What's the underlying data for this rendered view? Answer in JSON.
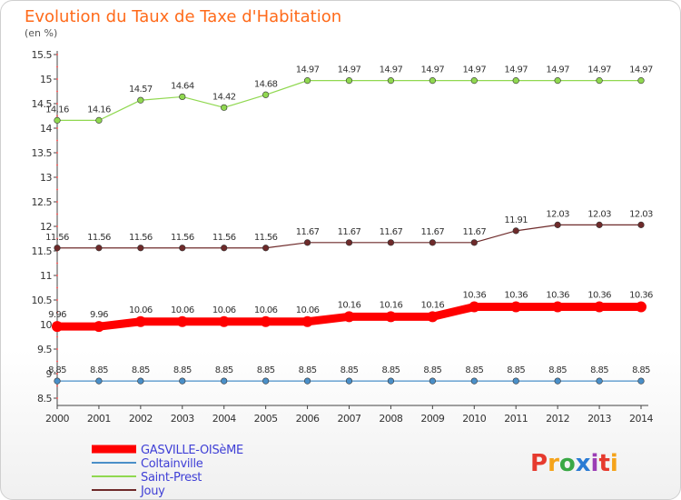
{
  "title": "Evolution du Taux de Taxe d'Habitation",
  "subtitle": "(en %)",
  "logo": {
    "text": "Proxiti",
    "colors": [
      "#e63a2e",
      "#f5a31a",
      "#3aa845",
      "#2a7bd4",
      "#9b3db5"
    ]
  },
  "chart_data": {
    "type": "line",
    "x": [
      2000,
      2001,
      2002,
      2003,
      2004,
      2005,
      2006,
      2007,
      2008,
      2009,
      2010,
      2011,
      2012,
      2013,
      2014
    ],
    "ylim": [
      8.5,
      15.5
    ],
    "yticks": [
      "8.5",
      "9",
      "9.5",
      "10",
      "10.5",
      "11",
      "11.5",
      "12",
      "12.5",
      "13",
      "13.5",
      "14",
      "14.5",
      "15",
      "15.5"
    ],
    "grid": false,
    "legend": "bottom",
    "series": [
      {
        "name": "Saint-Prest",
        "color": "#90d850",
        "width": 1.2,
        "values": [
          14.16,
          14.16,
          14.57,
          14.64,
          14.42,
          14.68,
          14.97,
          14.97,
          14.97,
          14.97,
          14.97,
          14.97,
          14.97,
          14.97,
          14.97
        ],
        "labels": [
          "14.16",
          "14.16",
          "14.57",
          "14.64",
          "14.42",
          "14.68",
          "14.97",
          "14.97",
          "14.97",
          "14.97",
          "14.97",
          "14.97",
          "14.97",
          "14.97",
          "14.97"
        ]
      },
      {
        "name": "Jouy",
        "color": "#6e2a2a",
        "width": 1.2,
        "values": [
          11.56,
          11.56,
          11.56,
          11.56,
          11.56,
          11.56,
          11.67,
          11.67,
          11.67,
          11.67,
          11.67,
          11.91,
          12.03,
          12.03,
          12.03
        ],
        "labels": [
          "11.56",
          "11.56",
          "11.56",
          "11.56",
          "11.56",
          "11.56",
          "11.67",
          "11.67",
          "11.67",
          "11.67",
          "11.67",
          "11.91",
          "12.03",
          "12.03",
          "12.03"
        ]
      },
      {
        "name": "GASVILLE-OISèME",
        "color": "#ff0000",
        "width": 9,
        "values": [
          9.96,
          9.96,
          10.06,
          10.06,
          10.06,
          10.06,
          10.06,
          10.16,
          10.16,
          10.16,
          10.36,
          10.36,
          10.36,
          10.36,
          10.36
        ],
        "labels": [
          "9.96",
          "9.96",
          "10.06",
          "10.06",
          "10.06",
          "10.06",
          "10.06",
          "10.16",
          "10.16",
          "10.16",
          "10.36",
          "10.36",
          "10.36",
          "10.36",
          "10.36"
        ]
      },
      {
        "name": "Coltainville",
        "color": "#4a8fc8",
        "width": 1.2,
        "values": [
          8.85,
          8.85,
          8.85,
          8.85,
          8.85,
          8.85,
          8.85,
          8.85,
          8.85,
          8.85,
          8.85,
          8.85,
          8.85,
          8.85,
          8.85
        ],
        "labels": [
          "8.85",
          "8.85",
          "8.85",
          "8.85",
          "8.85",
          "8.85",
          "8.85",
          "8.85",
          "8.85",
          "8.85",
          "8.85",
          "8.85",
          "8.85",
          "8.85",
          "8.85"
        ]
      }
    ],
    "legend_order": [
      "GASVILLE-OISèME",
      "Coltainville",
      "Saint-Prest",
      "Jouy"
    ]
  }
}
